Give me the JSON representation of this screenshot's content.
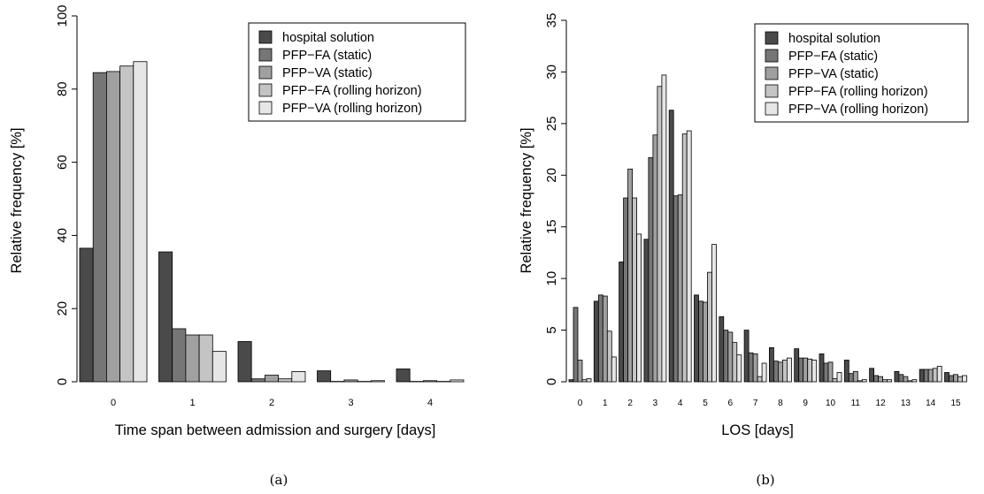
{
  "chart_data": [
    {
      "type": "bar",
      "panel_label": "(a)",
      "xlabel": "Time span between admission and surgery [days]",
      "ylabel": "Relative frequency [%]",
      "ylim": [
        0,
        100
      ],
      "yticks": [
        "0",
        "20",
        "40",
        "60",
        "80",
        "100"
      ],
      "categories": [
        "0",
        "1",
        "2",
        "3",
        "4"
      ],
      "legend_placement": "top-right",
      "grid": false,
      "series": [
        {
          "name": "hospital solution",
          "color": "#4a4a4a",
          "values": [
            36.5,
            35.5,
            11.0,
            3.0,
            3.5
          ]
        },
        {
          "name": "PFP−FA (static)",
          "color": "#767676",
          "values": [
            84.5,
            14.5,
            0.8,
            0.1,
            0.1
          ]
        },
        {
          "name": "PFP−VA (static)",
          "color": "#a0a0a0",
          "values": [
            84.8,
            12.8,
            1.8,
            0.5,
            0.3
          ]
        },
        {
          "name": "PFP−FA (rolling horizon)",
          "color": "#c4c4c4",
          "values": [
            86.3,
            12.8,
            0.8,
            0.1,
            0.1
          ]
        },
        {
          "name": "PFP−VA (rolling horizon)",
          "color": "#e6e6e6",
          "values": [
            87.5,
            8.3,
            2.8,
            0.3,
            0.5
          ]
        }
      ]
    },
    {
      "type": "bar",
      "panel_label": "(b)",
      "xlabel": "LOS [days]",
      "ylabel": "Relative frequency [%]",
      "ylim": [
        0,
        35
      ],
      "yticks": [
        "0",
        "5",
        "10",
        "15",
        "20",
        "25",
        "30",
        "35"
      ],
      "categories": [
        "0",
        "1",
        "2",
        "3",
        "4",
        "5",
        "6",
        "7",
        "8",
        "9",
        "10",
        "11",
        "12",
        "13",
        "14",
        "15"
      ],
      "legend_placement": "top-right",
      "grid": false,
      "series": [
        {
          "name": "hospital solution",
          "color": "#4a4a4a",
          "values": [
            0.2,
            7.8,
            11.6,
            13.8,
            26.3,
            8.4,
            6.3,
            5.0,
            3.3,
            3.2,
            2.7,
            2.1,
            1.3,
            1.0,
            1.2,
            0.9
          ]
        },
        {
          "name": "PFP−FA (static)",
          "color": "#767676",
          "values": [
            7.2,
            8.4,
            17.8,
            21.7,
            18.0,
            7.8,
            5.0,
            2.8,
            2.0,
            2.3,
            1.8,
            0.8,
            0.6,
            0.7,
            1.2,
            0.6
          ]
        },
        {
          "name": "PFP−VA (static)",
          "color": "#a0a0a0",
          "values": [
            2.1,
            8.3,
            20.6,
            23.9,
            18.1,
            7.7,
            4.8,
            2.7,
            1.9,
            2.3,
            1.9,
            1.0,
            0.5,
            0.5,
            1.2,
            0.7
          ]
        },
        {
          "name": "PFP−FA (rolling horizon)",
          "color": "#c4c4c4",
          "values": [
            0.2,
            4.9,
            17.8,
            28.6,
            24.0,
            10.6,
            3.8,
            0.5,
            2.1,
            2.2,
            0.3,
            0.1,
            0.2,
            0.1,
            1.3,
            0.5
          ]
        },
        {
          "name": "PFP−VA (rolling horizon)",
          "color": "#e6e6e6",
          "values": [
            0.3,
            2.4,
            14.3,
            29.7,
            24.3,
            13.3,
            2.6,
            1.8,
            2.3,
            2.1,
            0.9,
            0.2,
            0.2,
            0.2,
            1.5,
            0.6
          ]
        }
      ]
    }
  ]
}
